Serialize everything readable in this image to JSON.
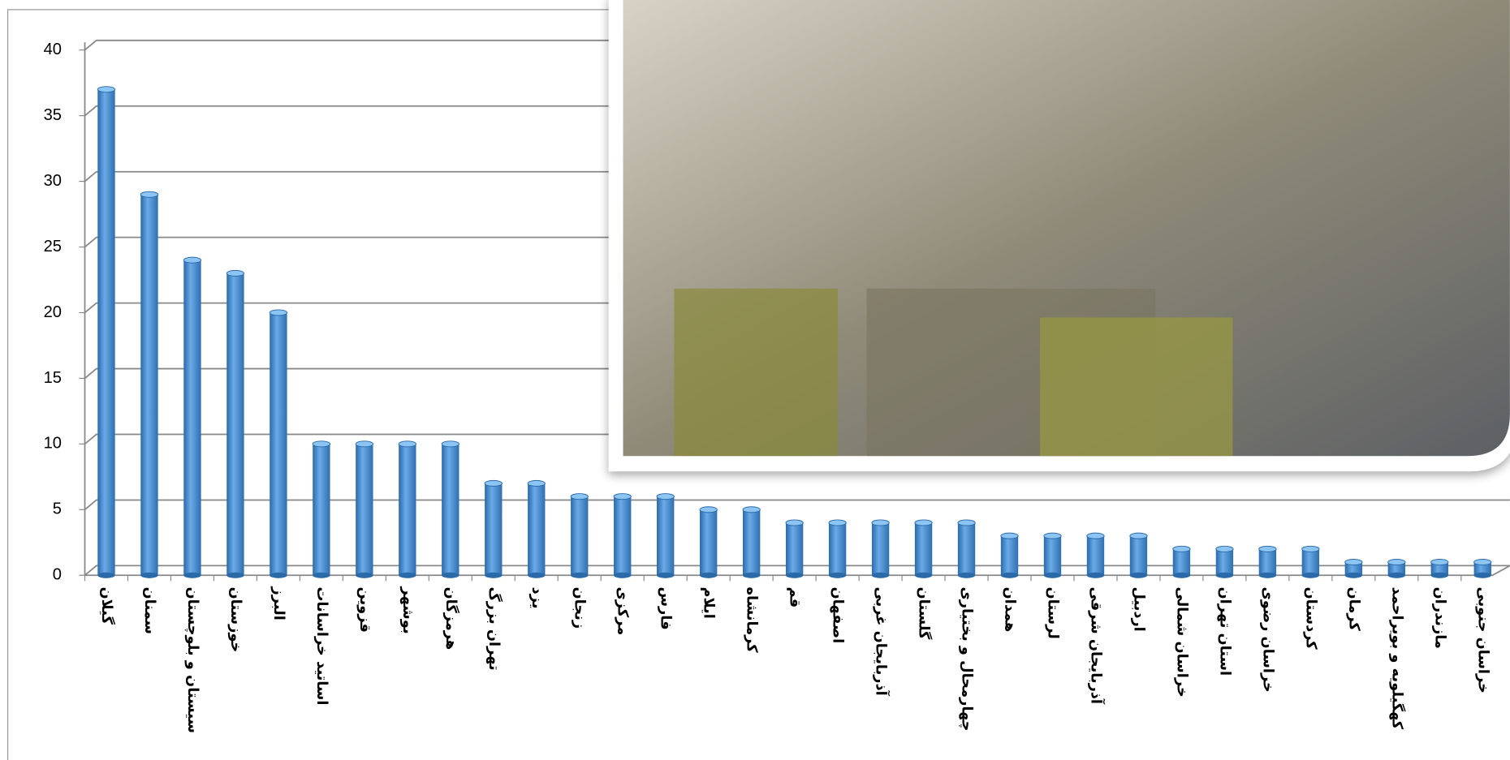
{
  "chart_data": {
    "type": "bar",
    "categories": [
      "گیلان",
      "سمنان",
      "سیستان و بلوچستان",
      "خوزستان",
      "البرز",
      "اساتید خراسانات",
      "قزوین",
      "بوشهر",
      "هرمزگان",
      "تهران بزرگ",
      "یزد",
      "زنجان",
      "مرکزی",
      "فارس",
      "ایلام",
      "کرمانشاه",
      "قم",
      "اصفهان",
      "آذربایجان غربی",
      "گلستان",
      "چهارمحال و بختیاری",
      "همدان",
      "لرستان",
      "آذربایجان شرقی",
      "اردبیل",
      "خراسان شمالی",
      "استان تهران",
      "خراسان رضوی",
      "کردستان",
      "کرمان",
      "کهگیلویه و بویراحمد",
      "مازندران",
      "خراسان جنوبی"
    ],
    "values": [
      37,
      29,
      24,
      23,
      20,
      10,
      10,
      10,
      10,
      7,
      7,
      6,
      6,
      6,
      5,
      5,
      4,
      4,
      4,
      4,
      4,
      3,
      3,
      3,
      3,
      2,
      2,
      2,
      2,
      1,
      1,
      1,
      1
    ],
    "color": "#4a8fd4",
    "ylim": [
      0,
      40
    ],
    "yticks": [
      0,
      5,
      10,
      15,
      20,
      25,
      30,
      35,
      40
    ],
    "grid": true
  }
}
